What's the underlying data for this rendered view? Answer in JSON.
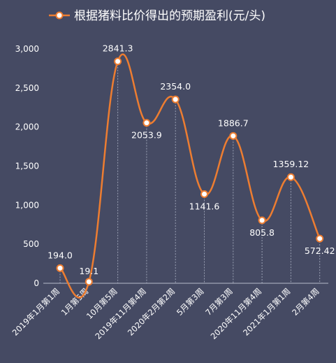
{
  "chart_data": {
    "type": "line",
    "title": "",
    "legend": {
      "label": "根据猪料比价得出的预期盈利(元/头)",
      "placement": "top-center"
    },
    "categories": [
      "2019年1月第1周",
      "1月第5周",
      "10月第5周",
      "2019年11月第4周",
      "2020年2月第2周",
      "5月第3周",
      "7月第3周",
      "2020年11月第4周",
      "2021年1月第1周",
      "2月第4周"
    ],
    "series": [
      {
        "name": "根据猪料比价得出的预期盈利(元/头)",
        "values": [
          194.0,
          19.1,
          2841.3,
          2053.9,
          2354.0,
          1141.6,
          1886.7,
          805.8,
          1359.12,
          572.42
        ],
        "labels": [
          "194.0",
          "19.1",
          "2841.3",
          "2053.9",
          "2354.0",
          "1141.6",
          "1886.7",
          "805.8",
          "1359.12",
          "572.42"
        ]
      }
    ],
    "ylim": [
      0,
      3000
    ],
    "yticks": [
      0,
      500,
      1000,
      1500,
      2000,
      2500,
      3000
    ],
    "ytick_labels": [
      "0",
      "500",
      "1,000",
      "1,500",
      "2,000",
      "2,500",
      "3,000"
    ],
    "grid": "vertical dashed drop lines",
    "colors": {
      "background": "#454a63",
      "line": "#ed7d31",
      "text": "#ffffff",
      "droplines": "#9aa0b3"
    }
  }
}
